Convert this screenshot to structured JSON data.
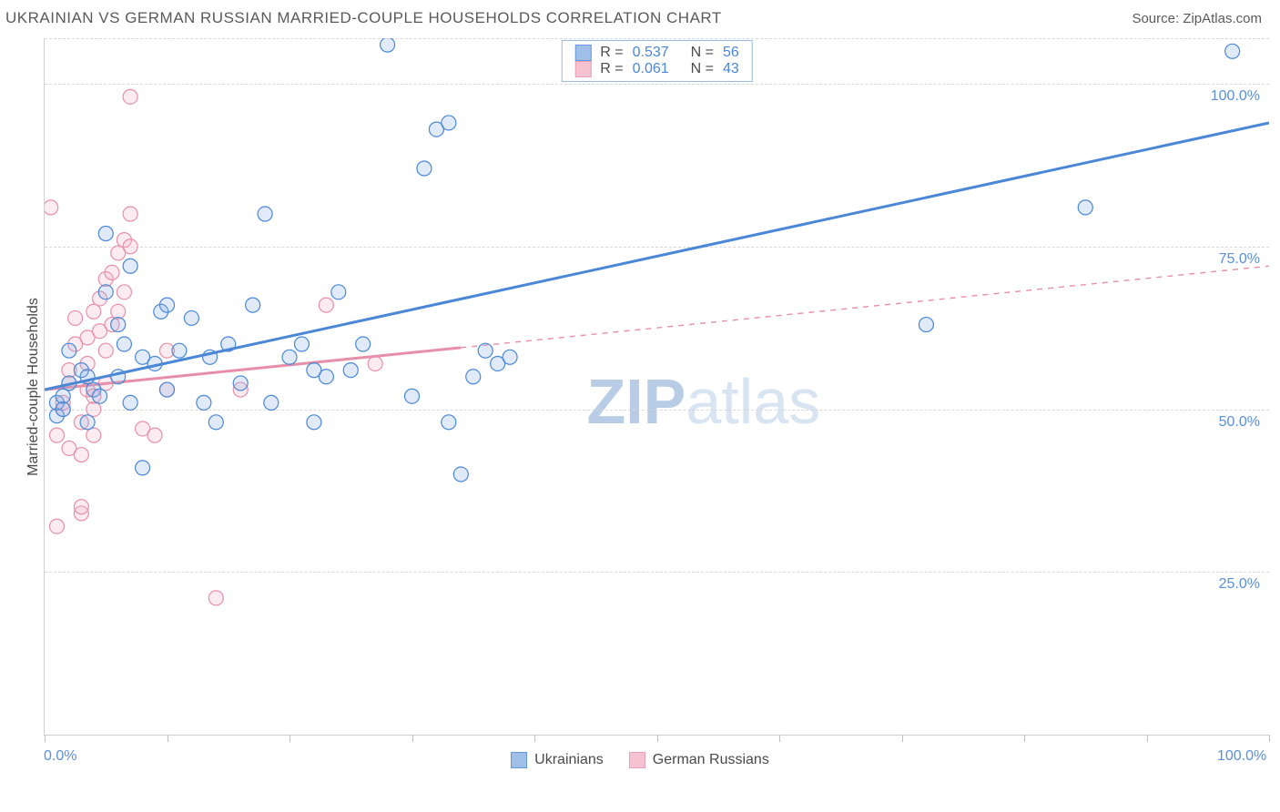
{
  "header": {
    "title": "UKRAINIAN VS GERMAN RUSSIAN MARRIED-COUPLE HOUSEHOLDS CORRELATION CHART",
    "source": "Source: ZipAtlas.com"
  },
  "chart": {
    "type": "scatter",
    "y_label": "Married-couple Households",
    "xlim": [
      0,
      100
    ],
    "ylim": [
      0,
      107
    ],
    "x_ticks": [
      0,
      10,
      20,
      30,
      40,
      50,
      60,
      70,
      80,
      90,
      100
    ],
    "x_tick_labels": {
      "0": "0.0%",
      "100": "100.0%"
    },
    "y_gridlines": [
      25,
      50,
      75,
      100,
      107
    ],
    "y_tick_labels": {
      "25": "25.0%",
      "50": "50.0%",
      "75": "75.0%",
      "100": "100.0%"
    },
    "background_color": "#ffffff",
    "grid_color": "#d8d8d8",
    "axis_color": "#d0d0d0",
    "tick_label_color": "#5b8fd6",
    "label_color": "#4a4a4a",
    "marker_radius": 8,
    "marker_stroke_width": 1.2,
    "marker_fill_opacity": 0.28,
    "trend_line_width": 3,
    "trend_dash_width": 1.4,
    "series": [
      {
        "name": "Ukrainians",
        "color_stroke": "#4a87d6",
        "color_fill": "#8fb4e6",
        "R": "0.537",
        "N": "56",
        "trend": {
          "x1": 0,
          "y1": 53,
          "x2": 100,
          "y2": 94,
          "dashed_from_x": null
        },
        "points": [
          [
            1,
            49
          ],
          [
            1,
            51
          ],
          [
            1.5,
            52
          ],
          [
            1.5,
            50
          ],
          [
            2,
            54
          ],
          [
            2,
            59
          ],
          [
            3,
            56
          ],
          [
            3.5,
            48
          ],
          [
            3.5,
            55
          ],
          [
            4,
            53
          ],
          [
            4.5,
            52
          ],
          [
            5,
            68
          ],
          [
            5,
            77
          ],
          [
            6,
            55
          ],
          [
            6.5,
            60
          ],
          [
            7,
            72
          ],
          [
            7,
            51
          ],
          [
            8,
            41
          ],
          [
            9,
            57
          ],
          [
            9.5,
            65
          ],
          [
            10,
            66
          ],
          [
            10,
            53
          ],
          [
            11,
            59
          ],
          [
            12,
            64
          ],
          [
            13,
            51
          ],
          [
            13.5,
            58
          ],
          [
            14,
            48
          ],
          [
            15,
            60
          ],
          [
            16,
            54
          ],
          [
            17,
            66
          ],
          [
            18,
            80
          ],
          [
            18.5,
            51
          ],
          [
            20,
            58
          ],
          [
            21,
            60
          ],
          [
            22,
            56
          ],
          [
            22,
            48
          ],
          [
            23,
            55
          ],
          [
            24,
            68
          ],
          [
            25,
            56
          ],
          [
            26,
            60
          ],
          [
            28,
            106
          ],
          [
            30,
            52
          ],
          [
            31,
            87
          ],
          [
            32,
            93
          ],
          [
            33,
            94
          ],
          [
            33,
            48
          ],
          [
            34,
            40
          ],
          [
            35,
            55
          ],
          [
            36,
            59
          ],
          [
            37,
            57
          ],
          [
            38,
            58
          ],
          [
            72,
            63
          ],
          [
            85,
            81
          ],
          [
            97,
            105
          ],
          [
            6,
            63
          ],
          [
            8,
            58
          ]
        ]
      },
      {
        "name": "German Russians",
        "color_stroke": "#e78fa8",
        "color_fill": "#f3b8c8",
        "R": "0.061",
        "N": "43",
        "trend": {
          "x1": 0,
          "y1": 53,
          "x2": 100,
          "y2": 72,
          "dashed_from_x": 34
        },
        "points": [
          [
            1,
            32
          ],
          [
            1,
            46
          ],
          [
            1.5,
            50
          ],
          [
            1.5,
            51
          ],
          [
            2,
            54
          ],
          [
            2,
            56
          ],
          [
            2,
            44
          ],
          [
            2.5,
            60
          ],
          [
            2.5,
            64
          ],
          [
            3,
            34
          ],
          [
            3,
            35
          ],
          [
            3,
            48
          ],
          [
            3.5,
            53
          ],
          [
            3.5,
            57
          ],
          [
            3.5,
            61
          ],
          [
            4,
            46
          ],
          [
            4,
            50
          ],
          [
            4,
            65
          ],
          [
            4.5,
            62
          ],
          [
            4.5,
            67
          ],
          [
            5,
            54
          ],
          [
            5,
            59
          ],
          [
            5,
            70
          ],
          [
            5.5,
            63
          ],
          [
            5.5,
            71
          ],
          [
            6,
            65
          ],
          [
            6,
            74
          ],
          [
            6.5,
            68
          ],
          [
            6.5,
            76
          ],
          [
            7,
            75
          ],
          [
            7,
            80
          ],
          [
            7,
            98
          ],
          [
            0.5,
            81
          ],
          [
            3,
            43
          ],
          [
            4,
            52
          ],
          [
            8,
            47
          ],
          [
            9,
            46
          ],
          [
            10,
            59
          ],
          [
            10,
            53
          ],
          [
            14,
            21
          ],
          [
            16,
            53
          ],
          [
            23,
            66
          ],
          [
            27,
            57
          ]
        ]
      }
    ]
  },
  "bottom_legend": [
    {
      "label": "Ukrainians",
      "fill": "#8fb4e6",
      "stroke": "#4a87d6",
      "fill_opacity": 0.5
    },
    {
      "label": "German Russians",
      "fill": "#f3b8c8",
      "stroke": "#e78fa8",
      "fill_opacity": 0.5
    }
  ],
  "watermark": {
    "text_bold": "ZIP",
    "text_light": "atlas",
    "color_bold": "#b8cce6",
    "color_light": "#d8e4f2"
  }
}
